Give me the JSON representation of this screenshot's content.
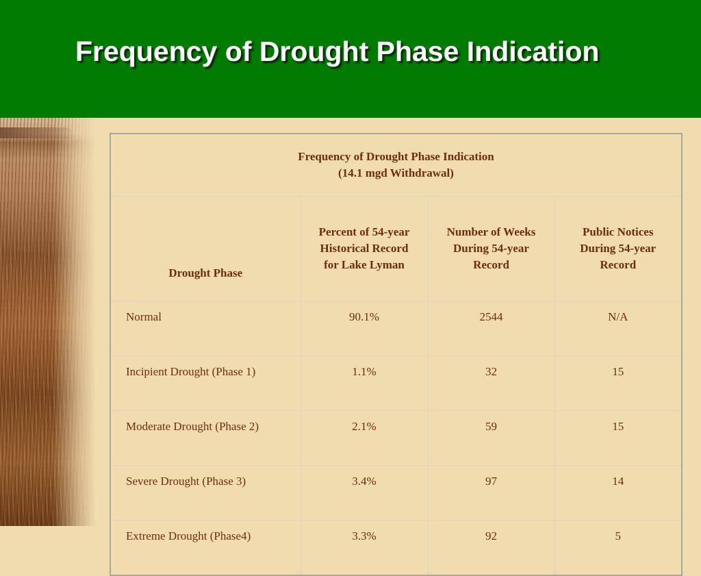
{
  "slide": {
    "title": "Frequency of Drought Phase Indication"
  },
  "table": {
    "caption_line1": "Frequency of Drought Phase Indication",
    "caption_line2": "(14.1 mgd Withdrawal)",
    "headers": {
      "phase": "Drought Phase",
      "percent": "Percent of 54-year Historical Record for Lake Lyman",
      "weeks": "Number of Weeks During 54-year Record",
      "notices": "Public Notices During 54-year Record"
    },
    "rows": [
      {
        "phase": "Normal",
        "percent": "90.1%",
        "weeks": "2544",
        "notices": "N/A"
      },
      {
        "phase": "Incipient Drought (Phase 1)",
        "percent": "1.1%",
        "weeks": "32",
        "notices": "15"
      },
      {
        "phase": "Moderate Drought (Phase 2)",
        "percent": "2.1%",
        "weeks": "59",
        "notices": "15"
      },
      {
        "phase": "Severe Drought (Phase 3)",
        "percent": "3.4%",
        "weeks": "97",
        "notices": "14"
      },
      {
        "phase": "Extreme Drought (Phase4)",
        "percent": "3.3%",
        "weeks": "92",
        "notices": "5"
      }
    ]
  },
  "colors": {
    "header_green": "#027b02",
    "background": "#f1dcb0",
    "table_text": "#6b2e0a"
  }
}
